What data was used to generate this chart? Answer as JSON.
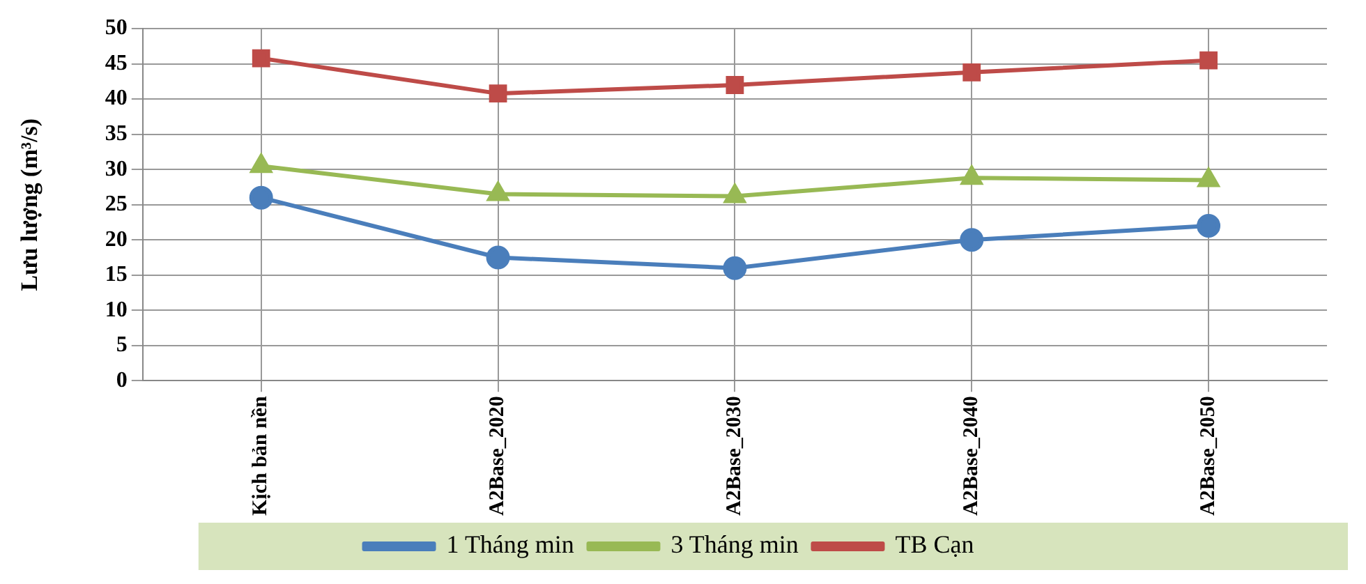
{
  "chart_data": {
    "type": "line",
    "ylabel": "Lưu lượng (m³/s)",
    "categories": [
      "Kịch bản nền",
      "A2Base_2020",
      "A2Base_2030",
      "A2Base_2040",
      "A2Base_2050"
    ],
    "series": [
      {
        "name": "1 Tháng min",
        "color": "#4a7ebb",
        "values": [
          26,
          17.5,
          16,
          20,
          22
        ],
        "marker": "circle"
      },
      {
        "name": "3 Tháng min",
        "color": "#98b954",
        "values": [
          30.5,
          26.5,
          26.2,
          28.8,
          28.5
        ],
        "marker": "triangle"
      },
      {
        "name": "TB Cạn",
        "color": "#be4b48",
        "values": [
          45.8,
          40.8,
          42,
          43.8,
          45.5
        ],
        "marker": "square"
      }
    ],
    "ylim": [
      0,
      50
    ],
    "yticks": [
      0,
      5,
      10,
      15,
      20,
      25,
      30,
      35,
      40,
      45,
      50
    ],
    "grid": true,
    "legend": "bottom",
    "line_style": "solid"
  }
}
